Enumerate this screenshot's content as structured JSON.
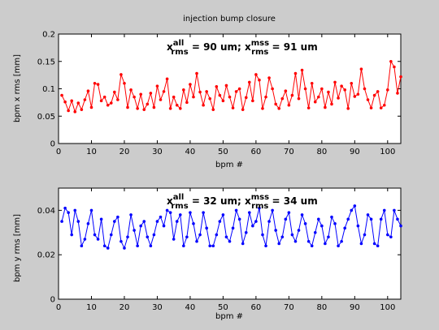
{
  "figure": {
    "title": "injection bump closure",
    "background": "#cccccc"
  },
  "chart_data": [
    {
      "type": "line",
      "ylabel": "bpm x rms [mm]",
      "xlabel": "bpm #",
      "xlim": [
        0,
        104
      ],
      "ylim": [
        0,
        0.2
      ],
      "xticks": [
        "0",
        "10",
        "20",
        "30",
        "40",
        "50",
        "60",
        "70",
        "80",
        "90",
        "100"
      ],
      "yticks": [
        "0",
        "0.05",
        "0.1",
        "0.15",
        "0.2"
      ],
      "grid": false,
      "color": "#ff0000",
      "annotation": {
        "prefix": "x",
        "sup1": "all",
        "sub1": "rms",
        "mid": " = 90 um; x",
        "sup2": "mss",
        "sub2": "rms",
        "tail": " = 91 um"
      },
      "series": [
        {
          "x": [
            1,
            2,
            3,
            4,
            5,
            6,
            7,
            8,
            9,
            10,
            11,
            12,
            13,
            14,
            15,
            16,
            17,
            18,
            19,
            20,
            21,
            22,
            23,
            24,
            25,
            26,
            27,
            28,
            29,
            30,
            31,
            32,
            33,
            34,
            35,
            36,
            37,
            38,
            39,
            40,
            41,
            42,
            43,
            44,
            45,
            46,
            47,
            48,
            49,
            50,
            51,
            52,
            53,
            54,
            55,
            56,
            57,
            58,
            59,
            60,
            61,
            62,
            63,
            64,
            65,
            66,
            67,
            68,
            69,
            70,
            71,
            72,
            73,
            74,
            75,
            76,
            77,
            78,
            79,
            80,
            81,
            82,
            83,
            84,
            85,
            86,
            87,
            88,
            89,
            90,
            91,
            92,
            93,
            94,
            95,
            96,
            97,
            98,
            99,
            100,
            101,
            102,
            103,
            104
          ],
          "values": [
            0.088,
            0.076,
            0.06,
            0.078,
            0.058,
            0.074,
            0.062,
            0.08,
            0.096,
            0.066,
            0.11,
            0.108,
            0.078,
            0.085,
            0.07,
            0.074,
            0.094,
            0.08,
            0.126,
            0.11,
            0.066,
            0.098,
            0.085,
            0.064,
            0.09,
            0.062,
            0.072,
            0.092,
            0.066,
            0.105,
            0.08,
            0.095,
            0.118,
            0.064,
            0.085,
            0.07,
            0.064,
            0.098,
            0.075,
            0.108,
            0.085,
            0.128,
            0.094,
            0.07,
            0.095,
            0.082,
            0.062,
            0.104,
            0.088,
            0.078,
            0.106,
            0.085,
            0.065,
            0.095,
            0.1,
            0.062,
            0.084,
            0.112,
            0.078,
            0.126,
            0.116,
            0.064,
            0.085,
            0.12,
            0.1,
            0.072,
            0.064,
            0.082,
            0.096,
            0.07,
            0.088,
            0.128,
            0.082,
            0.134,
            0.1,
            0.065,
            0.11,
            0.076,
            0.085,
            0.1,
            0.066,
            0.094,
            0.072,
            0.112,
            0.083,
            0.105,
            0.098,
            0.064,
            0.11,
            0.086,
            0.09,
            0.136,
            0.1,
            0.08,
            0.065,
            0.088,
            0.095,
            0.065,
            0.07,
            0.098,
            0.15,
            0.14,
            0.092,
            0.122
          ]
        }
      ]
    },
    {
      "type": "line",
      "ylabel": "bpm y rms [mm]",
      "xlabel": "bpm #",
      "xlim": [
        0,
        104
      ],
      "ylim": [
        0,
        0.05
      ],
      "xticks": [
        "0",
        "10",
        "20",
        "30",
        "40",
        "50",
        "60",
        "70",
        "80",
        "90",
        "100"
      ],
      "yticks": [
        "0",
        "0.02",
        "0.04"
      ],
      "grid": false,
      "color": "#0000ff",
      "annotation": {
        "prefix": "x",
        "sup1": "all",
        "sub1": "rms",
        "mid": " = 32 um; x",
        "sup2": "mss",
        "sub2": "rms",
        "tail": " = 34 um"
      },
      "series": [
        {
          "x": [
            1,
            2,
            3,
            4,
            5,
            6,
            7,
            8,
            9,
            10,
            11,
            12,
            13,
            14,
            15,
            16,
            17,
            18,
            19,
            20,
            21,
            22,
            23,
            24,
            25,
            26,
            27,
            28,
            29,
            30,
            31,
            32,
            33,
            34,
            35,
            36,
            37,
            38,
            39,
            40,
            41,
            42,
            43,
            44,
            45,
            46,
            47,
            48,
            49,
            50,
            51,
            52,
            53,
            54,
            55,
            56,
            57,
            58,
            59,
            60,
            61,
            62,
            63,
            64,
            65,
            66,
            67,
            68,
            69,
            70,
            71,
            72,
            73,
            74,
            75,
            76,
            77,
            78,
            79,
            80,
            81,
            82,
            83,
            84,
            85,
            86,
            87,
            88,
            89,
            90,
            91,
            92,
            93,
            94,
            95,
            96,
            97,
            98,
            99,
            100,
            101,
            102,
            103,
            104
          ],
          "values": [
            0.035,
            0.041,
            0.039,
            0.029,
            0.04,
            0.035,
            0.024,
            0.027,
            0.034,
            0.04,
            0.029,
            0.027,
            0.036,
            0.024,
            0.023,
            0.029,
            0.035,
            0.037,
            0.026,
            0.023,
            0.028,
            0.038,
            0.031,
            0.024,
            0.033,
            0.035,
            0.028,
            0.024,
            0.029,
            0.035,
            0.037,
            0.033,
            0.04,
            0.039,
            0.027,
            0.035,
            0.038,
            0.024,
            0.028,
            0.039,
            0.034,
            0.026,
            0.029,
            0.039,
            0.032,
            0.024,
            0.024,
            0.029,
            0.035,
            0.038,
            0.028,
            0.026,
            0.032,
            0.04,
            0.036,
            0.025,
            0.03,
            0.039,
            0.033,
            0.035,
            0.041,
            0.029,
            0.024,
            0.035,
            0.04,
            0.031,
            0.025,
            0.028,
            0.036,
            0.039,
            0.029,
            0.026,
            0.031,
            0.038,
            0.034,
            0.026,
            0.024,
            0.03,
            0.036,
            0.033,
            0.025,
            0.028,
            0.037,
            0.034,
            0.024,
            0.026,
            0.032,
            0.036,
            0.04,
            0.042,
            0.033,
            0.025,
            0.029,
            0.038,
            0.036,
            0.025,
            0.024,
            0.036,
            0.04,
            0.029,
            0.028,
            0.04,
            0.036,
            0.033
          ]
        }
      ]
    }
  ]
}
